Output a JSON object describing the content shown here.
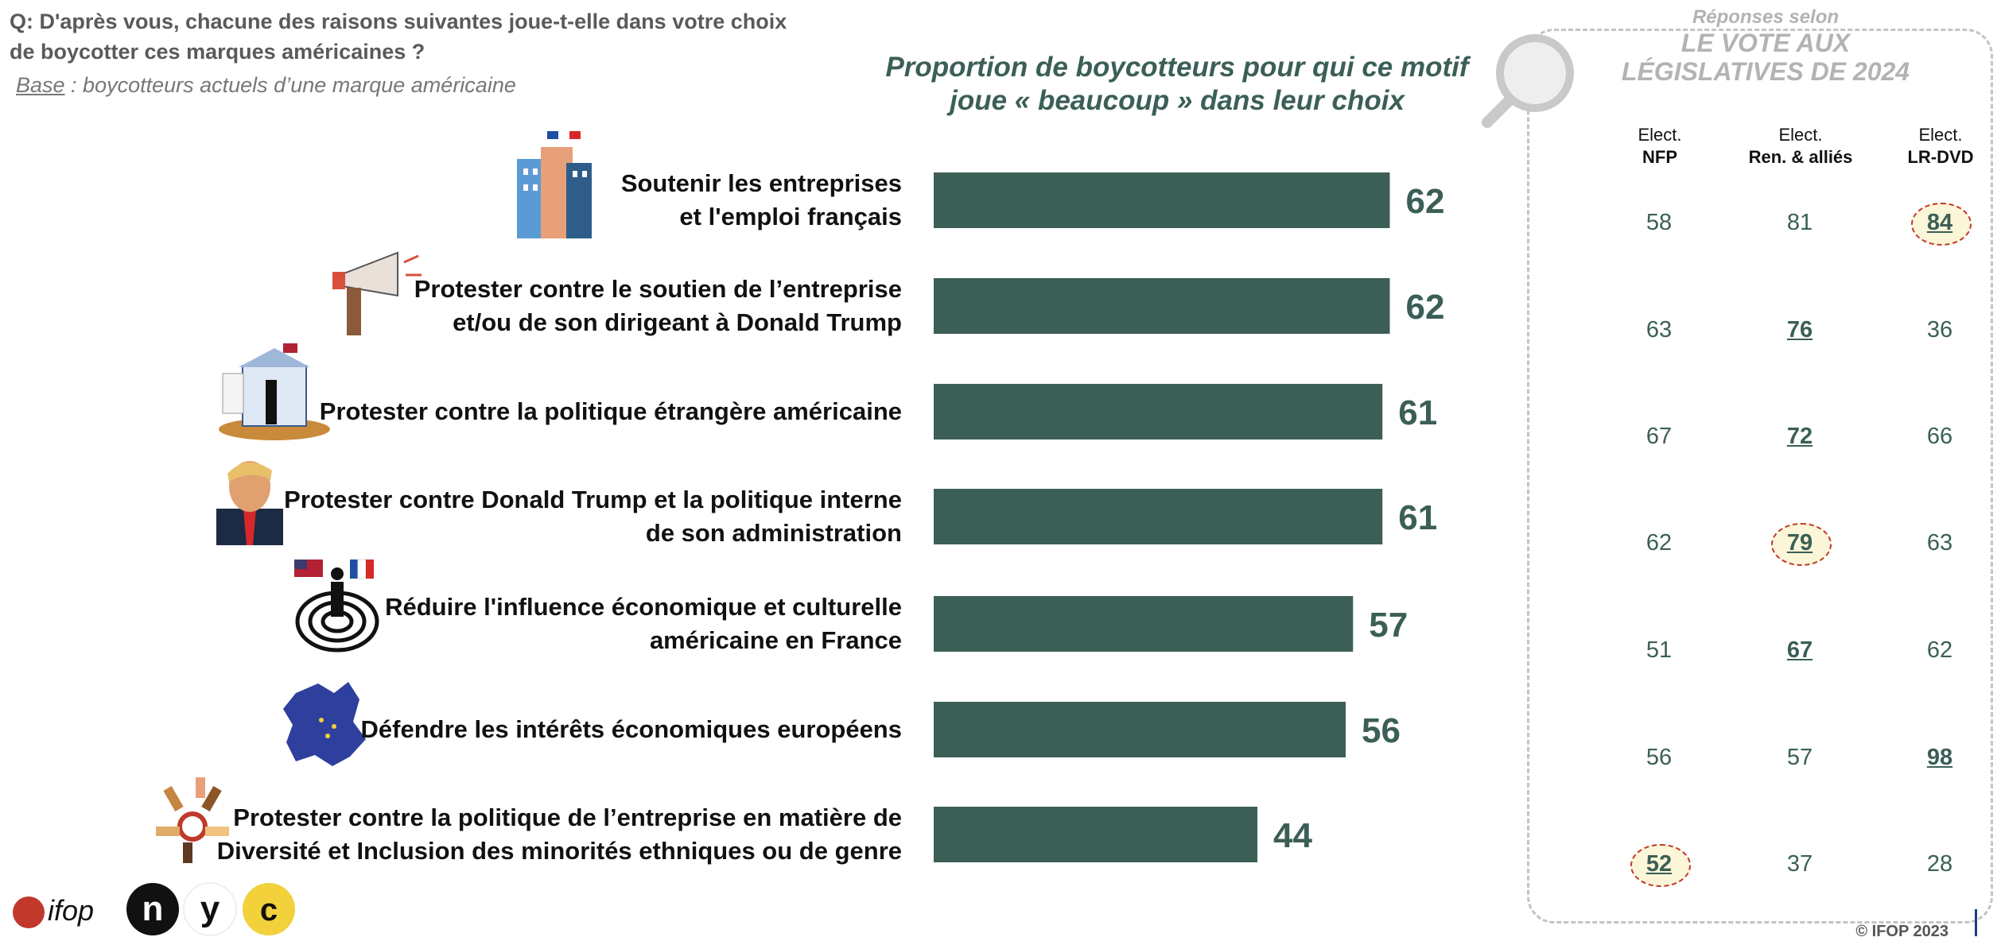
{
  "question": "Q: D'après vous, chacune des raisons suivantes joue-t-elle dans votre choix de boycotter ces marques américaines ?",
  "base": {
    "label": "Base",
    "text": " : boycotteurs actuels d’une marque américaine"
  },
  "chart_data": {
    "type": "bar",
    "orientation": "horizontal",
    "title": "Proportion de boycotteurs pour qui ce motif joue « beaucoup » dans leur choix",
    "xlim": [
      0,
      100
    ],
    "categories": [
      [
        "Soutenir les entreprises",
        "et l'emploi français"
      ],
      [
        "Protester contre le soutien de l’entreprise",
        "et/ou de son dirigeant à Donald Trump"
      ],
      [
        "Protester contre la politique étrangère américaine"
      ],
      [
        "Protester contre Donald Trump et la politique interne",
        "de son administration"
      ],
      [
        "Réduire l'influence économique et culturelle",
        "américaine en France"
      ],
      [
        "Défendre les intérêts économiques européens"
      ],
      [
        "Protester contre la politique de l’entreprise en matière de",
        "Diversité et Inclusion des minorités ethniques ou de genre"
      ]
    ],
    "values": [
      62,
      62,
      61,
      61,
      57,
      56,
      44
    ],
    "colors": {
      "bar": "#3b5f57",
      "value": "#3b5f57"
    }
  },
  "panel": {
    "subtitle": "Réponses selon",
    "title_line1": "LE VOTE AUX",
    "title_line2": "LÉGISLATIVES DE 2024",
    "columns": [
      {
        "line1": "Elect.",
        "line2": "NFP",
        "values": [
          "58",
          "63",
          "67",
          "62",
          "51",
          "56",
          "52"
        ]
      },
      {
        "line1": "Elect.",
        "line2": "Ren. & alliés",
        "values": [
          "81",
          "76",
          "72",
          "79",
          "67",
          "57",
          "37"
        ]
      },
      {
        "line1": "Elect.",
        "line2": "LR-DVD",
        "values": [
          "84",
          "36",
          "66",
          "63",
          "62",
          "98",
          "28"
        ]
      }
    ]
  },
  "logos": {
    "brand": "ifop",
    "n": "n",
    "y": "y",
    "c": "c"
  },
  "copyright": "© IFOP 2023"
}
